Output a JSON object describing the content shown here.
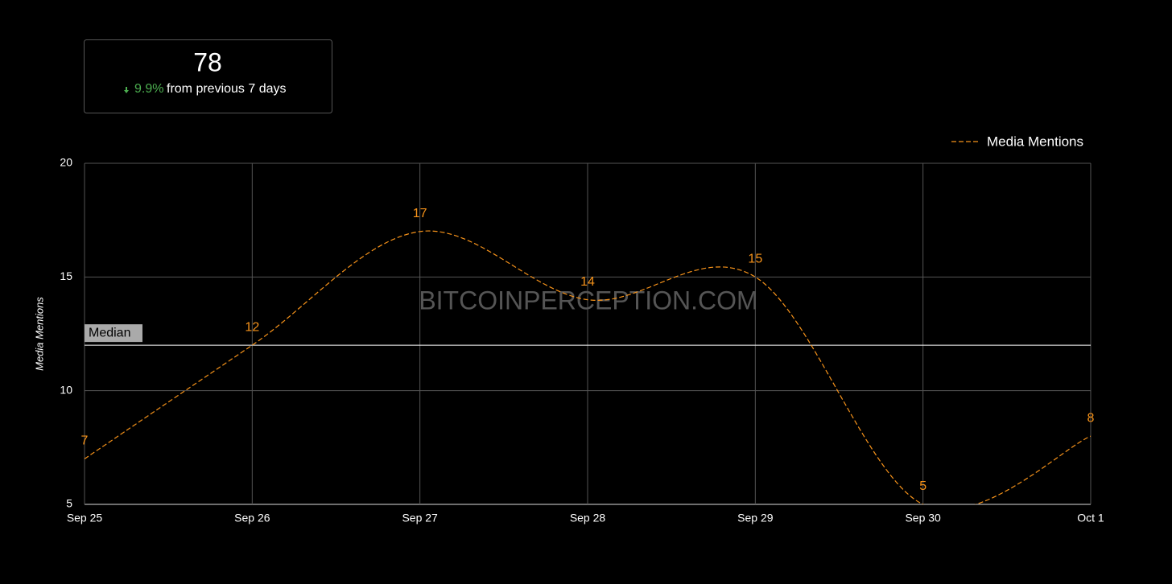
{
  "kpi": {
    "value": 78,
    "change": "9.9%",
    "change_text": "from previous 7 days"
  },
  "chart_data": {
    "type": "line",
    "categories": [
      "Sep 25",
      "Sep 26",
      "Sep 27",
      "Sep 28",
      "Sep 29",
      "Sep 30",
      "Oct 1"
    ],
    "series": [
      {
        "name": "Media Mentions",
        "color": "#f7931a",
        "values": [
          7,
          12,
          17,
          14,
          15,
          5,
          8
        ]
      }
    ],
    "y_label": "Media Mentions",
    "ylim": [
      5,
      20
    ],
    "yticks": [
      5,
      10,
      15,
      20
    ],
    "grid": true,
    "median": {
      "label": "Median",
      "value": 12
    },
    "watermark": "BITCOINPERCEPTION.COM",
    "legend": "top-right"
  }
}
